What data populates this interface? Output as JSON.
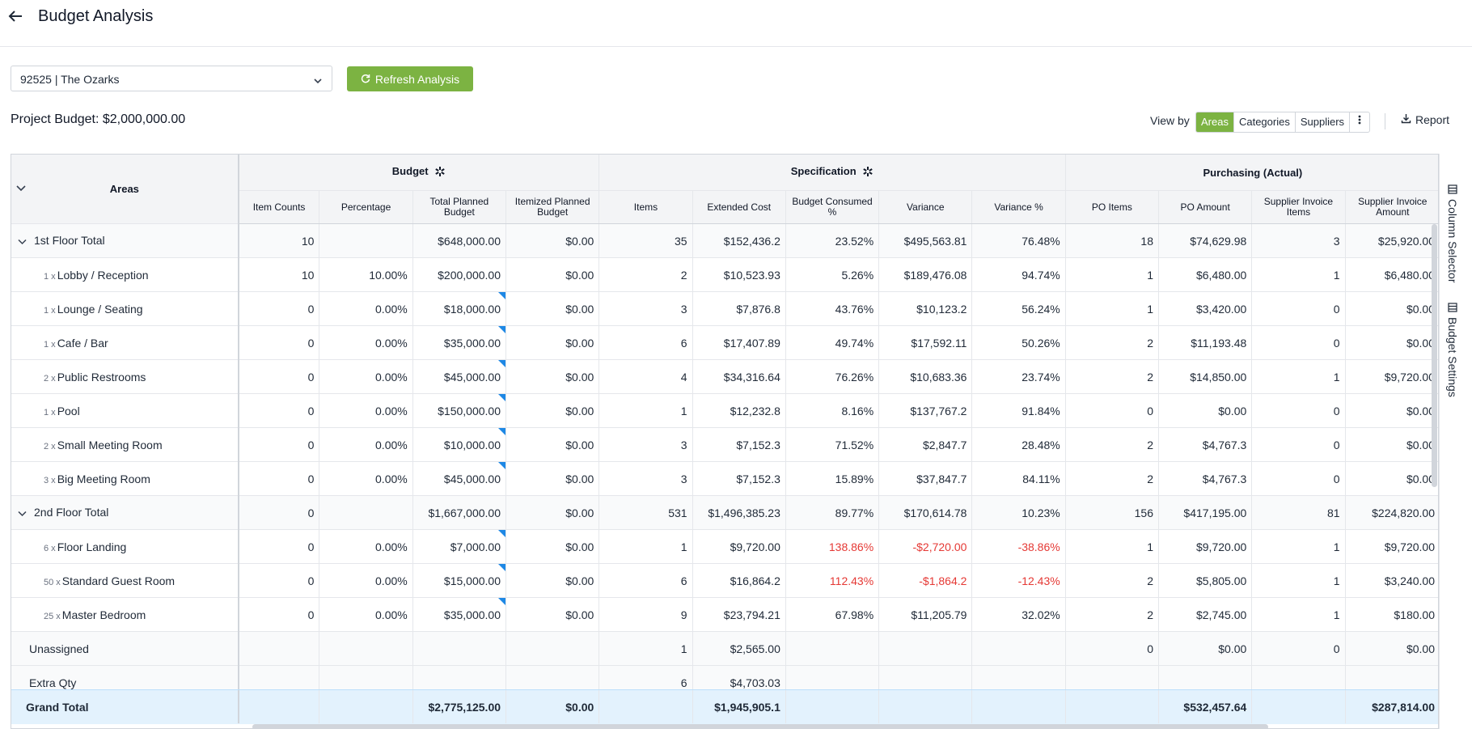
{
  "header": {
    "title": "Budget Analysis"
  },
  "controls": {
    "project_select": "92525 | The Ozarks",
    "refresh_label": "Refresh Analysis",
    "project_budget": "Project Budget: $2,000,000.00",
    "view_by_label": "View by",
    "view_options": [
      "Areas",
      "Categories",
      "Suppliers"
    ],
    "active_view": "Areas",
    "report_label": "Report"
  },
  "side_tabs": {
    "column_selector": "Column Selector",
    "budget_settings": "Budget Settings"
  },
  "grid": {
    "areas_header": "Areas",
    "groups": {
      "budget": "Budget",
      "specification": "Specification",
      "purchasing": "Purchasing (Actual)"
    },
    "columns": [
      "Item Counts",
      "Percentage",
      "Total Planned Budget",
      "Itemized Planned Budget",
      "Items",
      "Extended Cost",
      "Budget Consumed %",
      "Variance",
      "Variance %",
      "PO Items",
      "PO Amount",
      "Supplier Invoice Items",
      "Supplier Invoice Amount"
    ],
    "rows": [
      {
        "type": "group",
        "mult": "",
        "name": "1st Floor Total",
        "cells": [
          "10",
          "",
          "$648,000.00",
          "$0.00",
          "35",
          "$152,436.2",
          "23.52%",
          "$495,563.81",
          "76.48%",
          "18",
          "$74,629.98",
          "3",
          "$25,920.00"
        ]
      },
      {
        "type": "item",
        "mult": "1 x",
        "name": "Lobby / Reception",
        "cells": [
          "10",
          "10.00%",
          "$200,000.00",
          "$0.00",
          "2",
          "$10,523.93",
          "5.26%",
          "$189,476.08",
          "94.74%",
          "1",
          "$6,480.00",
          "1",
          "$6,480.00"
        ]
      },
      {
        "type": "item",
        "mult": "1 x",
        "name": "Lounge / Seating",
        "cells": [
          "0",
          "0.00%",
          "$18,000.00",
          "$0.00",
          "3",
          "$7,876.8",
          "43.76%",
          "$10,123.2",
          "56.24%",
          "1",
          "$3,420.00",
          "0",
          "$0.00"
        ]
      },
      {
        "type": "item",
        "mult": "1 x",
        "name": "Cafe / Bar",
        "cells": [
          "0",
          "0.00%",
          "$35,000.00",
          "$0.00",
          "6",
          "$17,407.89",
          "49.74%",
          "$17,592.11",
          "50.26%",
          "2",
          "$11,193.48",
          "0",
          "$0.00"
        ]
      },
      {
        "type": "item",
        "mult": "2 x",
        "name": "Public Restrooms",
        "cells": [
          "0",
          "0.00%",
          "$45,000.00",
          "$0.00",
          "4",
          "$34,316.64",
          "76.26%",
          "$10,683.36",
          "23.74%",
          "2",
          "$14,850.00",
          "1",
          "$9,720.00"
        ]
      },
      {
        "type": "item",
        "mult": "1 x",
        "name": "Pool",
        "cells": [
          "0",
          "0.00%",
          "$150,000.00",
          "$0.00",
          "1",
          "$12,232.8",
          "8.16%",
          "$137,767.2",
          "91.84%",
          "0",
          "$0.00",
          "0",
          "$0.00"
        ]
      },
      {
        "type": "item",
        "mult": "2 x",
        "name": "Small Meeting Room",
        "cells": [
          "0",
          "0.00%",
          "$10,000.00",
          "$0.00",
          "3",
          "$7,152.3",
          "71.52%",
          "$2,847.7",
          "28.48%",
          "2",
          "$4,767.3",
          "0",
          "$0.00"
        ]
      },
      {
        "type": "item",
        "mult": "3 x",
        "name": "Big Meeting Room",
        "cells": [
          "0",
          "0.00%",
          "$45,000.00",
          "$0.00",
          "3",
          "$7,152.3",
          "15.89%",
          "$37,847.7",
          "84.11%",
          "2",
          "$4,767.3",
          "0",
          "$0.00"
        ]
      },
      {
        "type": "group",
        "mult": "",
        "name": "2nd Floor Total",
        "cells": [
          "0",
          "",
          "$1,667,000.00",
          "$0.00",
          "531",
          "$1,496,385.23",
          "89.77%",
          "$170,614.78",
          "10.23%",
          "156",
          "$417,195.00",
          "81",
          "$224,820.00"
        ]
      },
      {
        "type": "item",
        "mult": "6 x",
        "name": "Floor Landing",
        "cells": [
          "0",
          "0.00%",
          "$7,000.00",
          "$0.00",
          "1",
          "$9,720.00",
          "138.86%",
          "-$2,720.00",
          "-38.86%",
          "1",
          "$9,720.00",
          "1",
          "$9,720.00"
        ]
      },
      {
        "type": "item",
        "mult": "50 x",
        "name": "Standard Guest Room",
        "cells": [
          "0",
          "0.00%",
          "$15,000.00",
          "$0.00",
          "6",
          "$16,864.2",
          "112.43%",
          "-$1,864.2",
          "-12.43%",
          "2",
          "$5,805.00",
          "1",
          "$3,240.00"
        ]
      },
      {
        "type": "item",
        "mult": "25 x",
        "name": "Master Bedroom",
        "cells": [
          "0",
          "0.00%",
          "$35,000.00",
          "$0.00",
          "9",
          "$23,794.21",
          "67.98%",
          "$11,205.79",
          "32.02%",
          "2",
          "$2,745.00",
          "1",
          "$180.00"
        ]
      },
      {
        "type": "unassigned",
        "mult": "",
        "name": "Unassigned",
        "cells": [
          "",
          "",
          "",
          "",
          "1",
          "$2,565.00",
          "",
          "",
          "",
          "0",
          "$0.00",
          "0",
          "$0.00"
        ]
      },
      {
        "type": "unassigned",
        "mult": "",
        "name": "Extra Qty",
        "cells": [
          "",
          "",
          "",
          "",
          "6",
          "$4,703.03",
          "",
          "",
          "",
          "",
          "",
          "",
          ""
        ]
      }
    ],
    "grand_total": {
      "name": "Grand Total",
      "cells": [
        "",
        "",
        "$2,775,125.00",
        "$0.00",
        "",
        "$1,945,905.1",
        "",
        "",
        "",
        "",
        "$532,457.64",
        "",
        "$287,814.00"
      ]
    }
  },
  "colors": {
    "accent": "#7cb342",
    "negative": "#e53935",
    "flag": "#1e88e5",
    "grand_total_bg": "#e3f2fd"
  }
}
